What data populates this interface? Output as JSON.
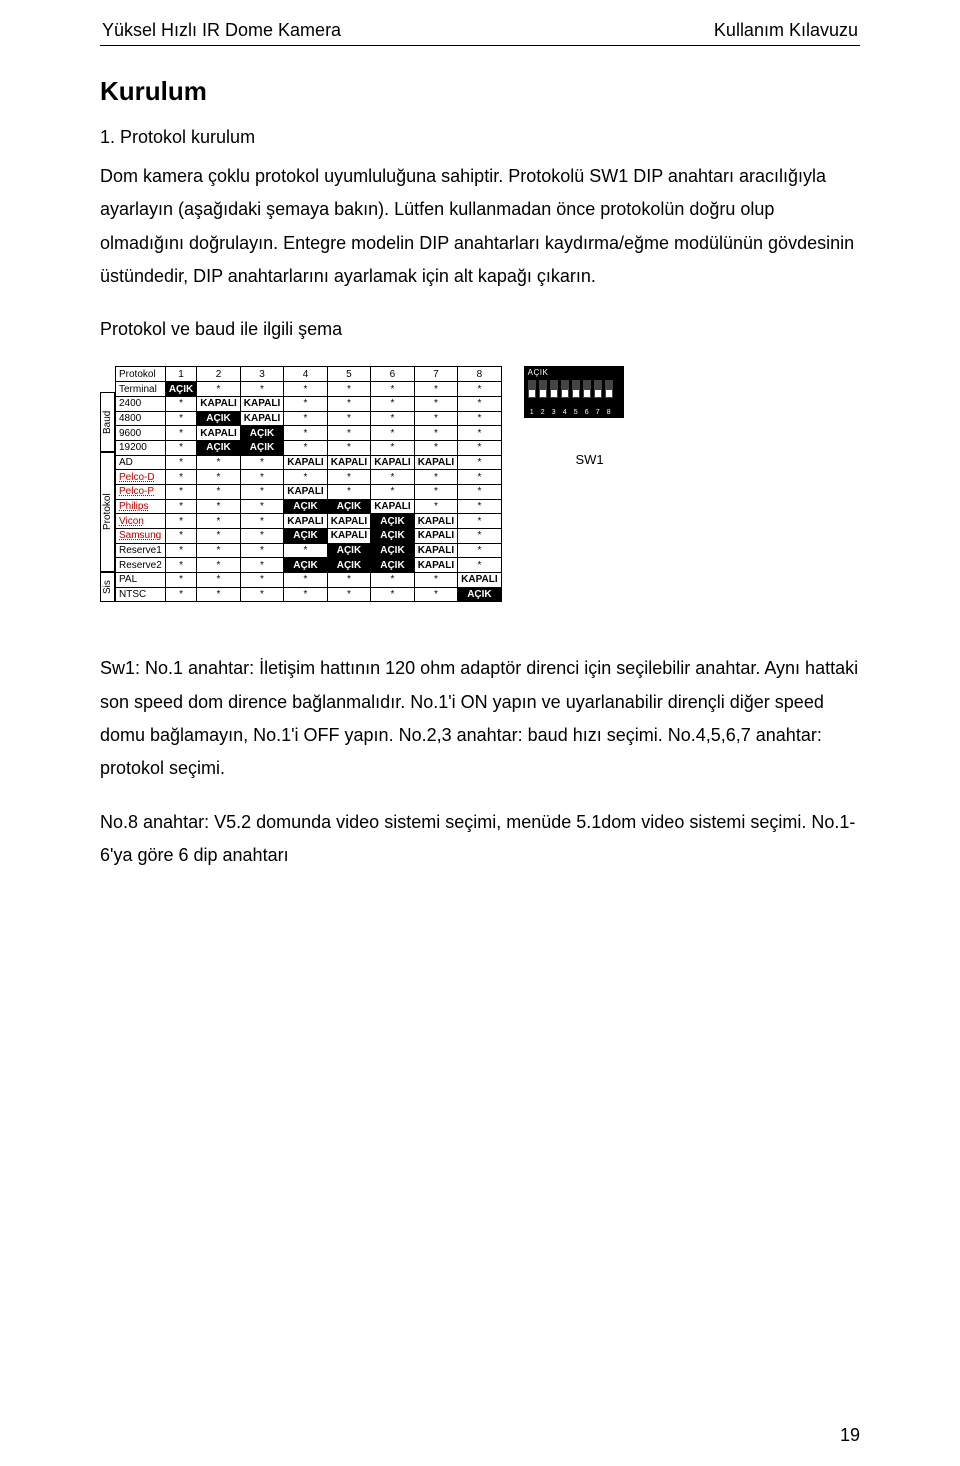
{
  "header": {
    "left": "Yüksel Hızlı IR Dome Kamera",
    "right": "Kullanım Kılavuzu"
  },
  "h1": "Kurulum",
  "h2": "1. Protokol kurulum",
  "intro": "Dom kamera çoklu protokol uyumluluğuna sahiptir. Protokolü SW1 DIP anahtarı aracılığıyla ayarlayın (aşağıdaki şemaya bakın). Lütfen kullanmadan önce protokolün doğru olup olmadığını doğrulayın. Entegre modelin DIP anahtarları kaydırma/eğme modülünün gövdesinin üstündedir, DIP anahtarlarını ayarlamak için alt kapağı çıkarın.",
  "figCaption": "Protokol ve baud ile ilgili şema",
  "on": "AÇIK",
  "off": "KAPALI",
  "star": "*",
  "table": {
    "top": {
      "label1": "Protokol",
      "label2": "Terminal",
      "cols": [
        "1",
        "2",
        "3",
        "4",
        "5",
        "6",
        "7",
        "8"
      ]
    },
    "groups": [
      {
        "label": "Baud",
        "rows": [
          {
            "name": "2400",
            "cells": [
              "*",
              "off",
              "off",
              "*",
              "*",
              "*",
              "*",
              "*"
            ]
          },
          {
            "name": "4800",
            "cells": [
              "*",
              "on",
              "off",
              "*",
              "*",
              "*",
              "*",
              "*"
            ]
          },
          {
            "name": "9600",
            "cells": [
              "*",
              "off",
              "on",
              "*",
              "*",
              "*",
              "*",
              "*"
            ]
          },
          {
            "name": "19200",
            "cells": [
              "*",
              "on",
              "on",
              "*",
              "*",
              "*",
              "*",
              "*"
            ]
          }
        ]
      },
      {
        "label": "Protokol",
        "rows": [
          {
            "name": "AD",
            "cells": [
              "*",
              "*",
              "*",
              "off",
              "off",
              "off",
              "off",
              "*"
            ]
          },
          {
            "name": "Pelco-D",
            "dotted": true,
            "cells": [
              "*",
              "*",
              "*",
              "*",
              "*",
              "*",
              "*",
              "*"
            ]
          },
          {
            "name": "Pelco-P",
            "dotted": true,
            "cells": [
              "*",
              "*",
              "*",
              "off",
              "*",
              "*",
              "*",
              "*"
            ]
          },
          {
            "name": "Philips",
            "dotted": true,
            "cells": [
              "*",
              "*",
              "*",
              "on",
              "on",
              "off",
              "*",
              "*"
            ]
          },
          {
            "name": "Vicon",
            "dotted": true,
            "cells": [
              "*",
              "*",
              "*",
              "off",
              "off",
              "on",
              "off",
              "*"
            ]
          },
          {
            "name": "Samsung",
            "dotted": true,
            "cells": [
              "*",
              "*",
              "*",
              "on",
              "off",
              "on",
              "off",
              "*"
            ]
          },
          {
            "name": "Reserve1",
            "cells": [
              "*",
              "*",
              "*",
              "*",
              "on",
              "on",
              "off",
              "*"
            ]
          },
          {
            "name": "Reserve2",
            "cells": [
              "*",
              "*",
              "*",
              "on",
              "on",
              "on",
              "off",
              "*"
            ]
          }
        ]
      },
      {
        "label": "Sis",
        "rows": [
          {
            "name": "PAL",
            "cells": [
              "*",
              "*",
              "*",
              "*",
              "*",
              "*",
              "*",
              "off"
            ]
          },
          {
            "name": "NTSC",
            "cells": [
              "*",
              "*",
              "*",
              "*",
              "*",
              "*",
              "*",
              "on"
            ]
          }
        ]
      }
    ]
  },
  "dip": {
    "label": "AÇIK",
    "nums": [
      "1",
      "2",
      "3",
      "4",
      "5",
      "6",
      "7",
      "8"
    ],
    "sw1": "SW1"
  },
  "body2a": "Sw1: No.1 anahtar: İletişim hattının 120 ohm adaptör direnci için seçilebilir anahtar. Aynı hattaki son speed dom dirence bağlanmalıdır. No.1'i ON yapın ve uyarlanabilir dirençli diğer speed domu bağlamayın, No.1'i OFF yapın. No.2,3 anahtar: baud hızı seçimi. No.4,5,6,7 anahtar: protokol seçimi.",
  "body2b": "No.8 anahtar: V5.2 domunda video sistemi seçimi, menüde 5.1dom video sistemi seçimi. No.1-6'ya göre 6 dip anahtarı",
  "pageNum": "19"
}
